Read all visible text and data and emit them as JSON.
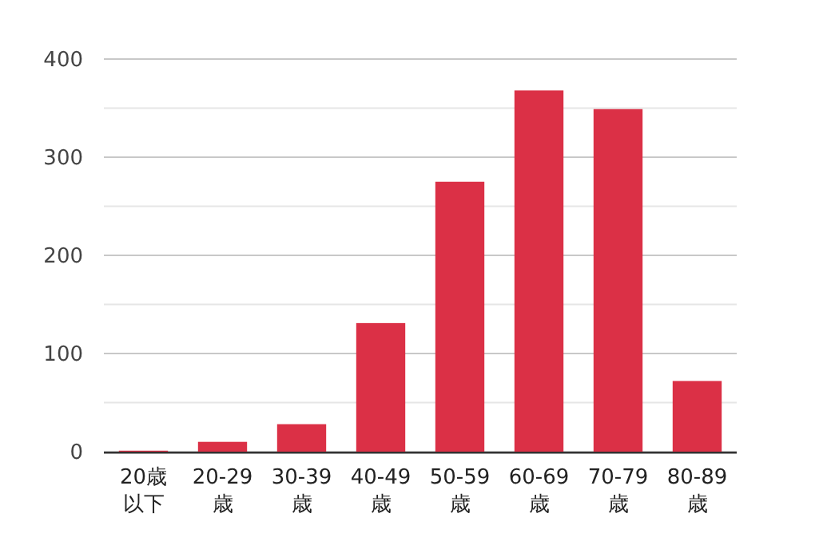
{
  "chart_data": {
    "type": "bar",
    "categories": [
      "20歳以下",
      "20-29歳",
      "30-39歳",
      "40-49歳",
      "50-59歳",
      "60-69歳",
      "70-79歳",
      "80-89歳"
    ],
    "values": [
      1,
      10,
      28,
      131,
      275,
      368,
      349,
      72
    ],
    "color": "#db3046",
    "ylim": [
      0,
      400
    ],
    "yticks": [
      0,
      {
        "value": 50,
        "label": null
      },
      100,
      {
        "value": 150,
        "label": null
      },
      200,
      {
        "value": 250,
        "label": null
      },
      300,
      {
        "value": 350,
        "label": null
      },
      400
    ],
    "grid": "y"
  }
}
